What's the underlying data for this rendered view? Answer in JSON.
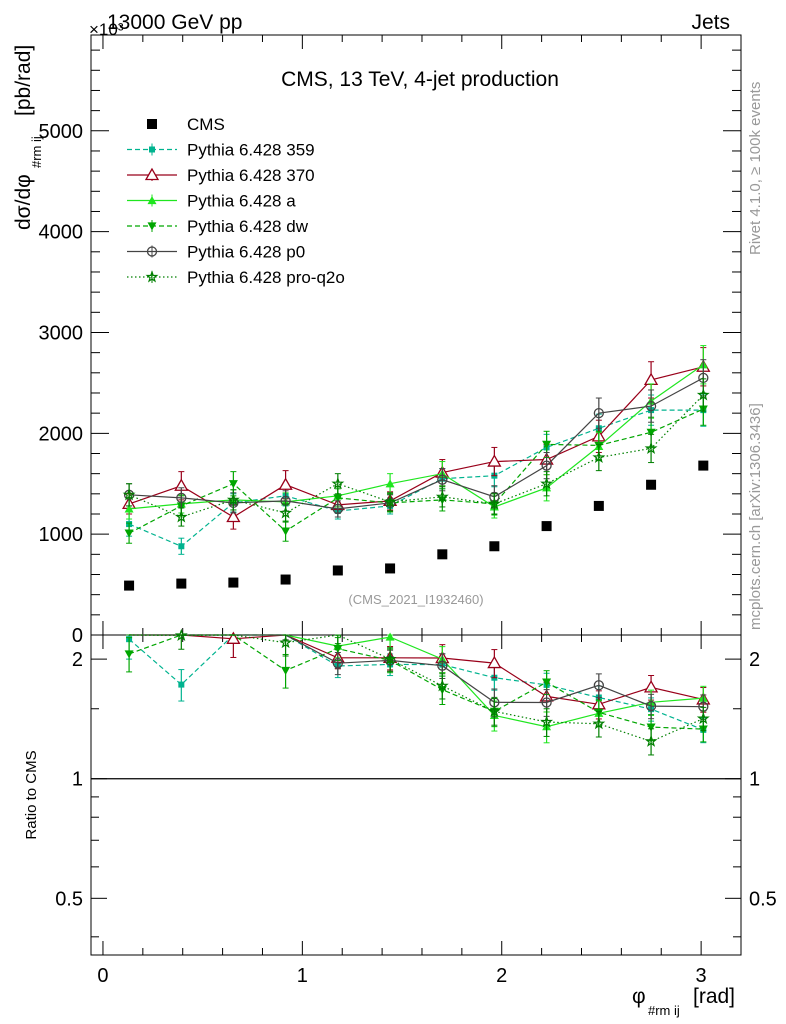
{
  "header": {
    "left": "13000 GeV pp",
    "right": "Jets",
    "exponent": "×10³"
  },
  "chart_data": {
    "type": "scatter",
    "title": "CMS, 13 TeV, 4-jet production",
    "xlabel_main": "φ",
    "xlabel_sub": "#rm ij",
    "xlabel_unit": "[rad]",
    "ylabel_main": "dσ/dφ",
    "ylabel_sub": "#rm ij",
    "ylabel_unit": "[pb/rad]",
    "ratio_ylabel": "Ratio to CMS",
    "watermark": "(CMS_2021_I1932460)",
    "side_text_1": "Rivet 4.1.0, ≥ 100k events",
    "side_text_2": "mcplots.cern.ch [arXiv:1306.3436]",
    "xlim": [
      -0.06,
      3.2
    ],
    "ylim": [
      0,
      5950
    ],
    "ratio_ylim": [
      0.36,
      2.3
    ],
    "x_ticks": [
      {
        "value": 0,
        "label": "0"
      },
      {
        "value": 1,
        "label": "1"
      },
      {
        "value": 2,
        "label": "2"
      },
      {
        "value": 3,
        "label": "3"
      }
    ],
    "y_ticks": [
      {
        "value": 0,
        "label": "0"
      },
      {
        "value": 1000,
        "label": "1000"
      },
      {
        "value": 2000,
        "label": "2000"
      },
      {
        "value": 3000,
        "label": "3000"
      },
      {
        "value": 4000,
        "label": "4000"
      },
      {
        "value": 5000,
        "label": "5000"
      }
    ],
    "ratio_ticks": [
      {
        "value": 0.5,
        "label": "0.5"
      },
      {
        "value": 1,
        "label": "1"
      },
      {
        "value": 2,
        "label": "2"
      }
    ],
    "x": [
      0.131,
      0.393,
      0.654,
      0.916,
      1.178,
      1.44,
      1.702,
      1.963,
      2.225,
      2.487,
      2.749,
      3.011
    ],
    "series": [
      {
        "name": "CMS",
        "color": "#000000",
        "marker": "square",
        "line": "none",
        "values": [
          490,
          510,
          520,
          550,
          640,
          660,
          800,
          880,
          1080,
          1280,
          1490,
          1680
        ],
        "errors": [
          0,
          0,
          0,
          0,
          0,
          0,
          0,
          0,
          0,
          0,
          0,
          0
        ]
      },
      {
        "name": "Pythia 6.428 359",
        "color": "#00b38f",
        "marker": "square-small",
        "line": "dashed",
        "values": [
          1100,
          880,
          1310,
          1380,
          1230,
          1280,
          1550,
          1580,
          1860,
          2050,
          2230,
          2230
        ],
        "errors": [
          120,
          80,
          90,
          100,
          80,
          80,
          100,
          110,
          130,
          140,
          150,
          160
        ]
      },
      {
        "name": "Pythia 6.428 370",
        "color": "#99001a",
        "marker": "triangle-open",
        "line": "solid",
        "values": [
          1300,
          1480,
          1170,
          1490,
          1290,
          1330,
          1610,
          1720,
          1740,
          1970,
          2530,
          2660
        ],
        "errors": [
          100,
          140,
          120,
          140,
          80,
          90,
          130,
          140,
          150,
          160,
          180,
          190
        ]
      },
      {
        "name": "Pythia 6.428 a",
        "color": "#1fe61f",
        "marker": "triangle",
        "line": "solid",
        "values": [
          1250,
          1300,
          1340,
          1320,
          1380,
          1500,
          1600,
          1270,
          1460,
          1870,
          2320,
          2680
        ],
        "errors": [
          100,
          90,
          100,
          90,
          90,
          100,
          120,
          110,
          130,
          140,
          170,
          190
        ]
      },
      {
        "name": "Pythia 6.428 dw",
        "color": "#00a600",
        "marker": "triangle-down",
        "line": "dashed",
        "values": [
          1010,
          1280,
          1500,
          1030,
          1360,
          1310,
          1340,
          1300,
          1890,
          1880,
          2010,
          2240
        ],
        "errors": [
          100,
          100,
          120,
          100,
          90,
          90,
          110,
          110,
          130,
          140,
          150,
          160
        ]
      },
      {
        "name": "Pythia 6.428 p0",
        "color": "#444444",
        "marker": "circle-open",
        "line": "solid",
        "values": [
          1390,
          1360,
          1310,
          1330,
          1250,
          1310,
          1540,
          1370,
          1680,
          2200,
          2270,
          2550
        ],
        "errors": [
          110,
          100,
          100,
          100,
          80,
          80,
          110,
          110,
          130,
          150,
          160,
          180
        ]
      },
      {
        "name": "Pythia 6.428 pro-q2o",
        "color": "#007f00",
        "marker": "star",
        "line": "dotted",
        "values": [
          1390,
          1170,
          1340,
          1210,
          1500,
          1320,
          1370,
          1300,
          1500,
          1760,
          1850,
          2380
        ],
        "errors": [
          110,
          90,
          100,
          90,
          100,
          90,
          100,
          100,
          120,
          130,
          140,
          160
        ]
      }
    ]
  }
}
